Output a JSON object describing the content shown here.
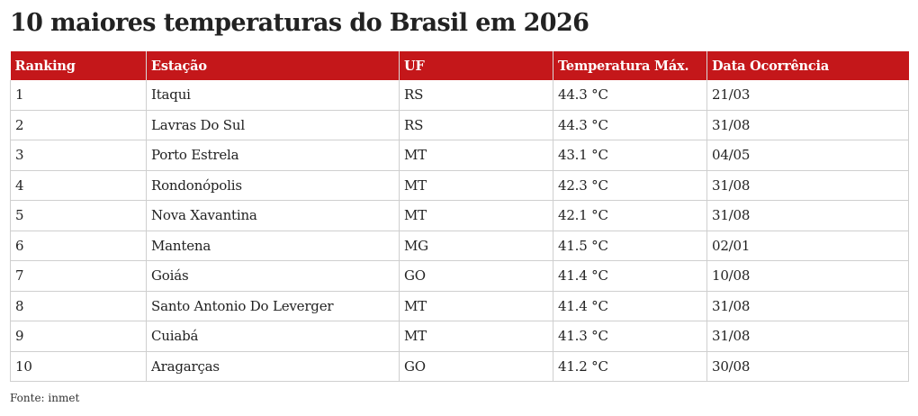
{
  "title": "10 maiores temperaturas do Brasil em 2026",
  "table": {
    "headers": [
      "Ranking",
      "Estação",
      "UF",
      "Temperatura Máx.",
      "Data Ocorrência"
    ],
    "rows": [
      [
        "1",
        "Itaqui",
        "RS",
        "44.3 °C",
        "21/03"
      ],
      [
        "2",
        "Lavras Do Sul",
        "RS",
        "44.3 °C",
        "31/08"
      ],
      [
        "3",
        "Porto Estrela",
        "MT",
        "43.1 °C",
        "04/05"
      ],
      [
        "4",
        "Rondonópolis",
        "MT",
        "42.3 °C",
        "31/08"
      ],
      [
        "5",
        "Nova Xavantina",
        "MT",
        "42.1 °C",
        "31/08"
      ],
      [
        "6",
        "Mantena",
        "MG",
        "41.5 °C",
        "02/01"
      ],
      [
        "7",
        "Goiás",
        "GO",
        "41.4 °C",
        "10/08"
      ],
      [
        "8",
        "Santo Antonio Do Leverger",
        "MT",
        "41.4 °C",
        "31/08"
      ],
      [
        "9",
        "Cuiabá",
        "MT",
        "41.3 °C",
        "31/08"
      ],
      [
        "10",
        "Aragarças",
        "GO",
        "41.2 °C",
        "30/08"
      ]
    ]
  },
  "source": "Fonte: inmet",
  "colors": {
    "header_background": "#c4171a",
    "header_text": "#ffffff",
    "grid_lines": "#cfcfcf"
  }
}
